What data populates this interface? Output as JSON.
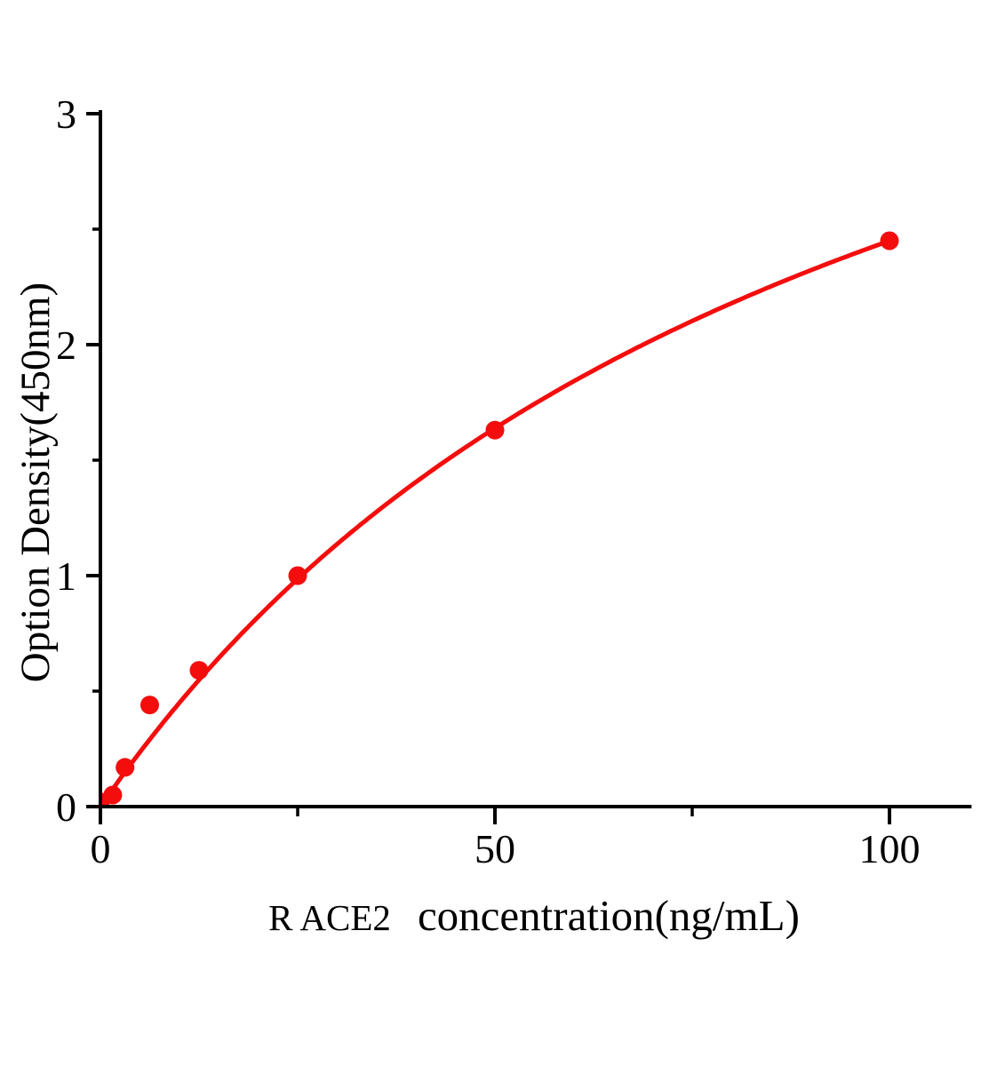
{
  "figure": {
    "background_color": "#ffffff",
    "title": ""
  },
  "chart_data": {
    "type": "scatter",
    "title": "",
    "xlabel": "R ACE2  concentration(ng/mL)",
    "xlabel_prefix": "R ACE2",
    "xlabel_main": "concentration(ng/mL)",
    "ylabel": "Option Density(450nm)",
    "xlim": [
      0,
      110.4
    ],
    "ylim": [
      0,
      3
    ],
    "x_major_ticks": [
      0,
      50,
      100
    ],
    "x_minor_ticks": [
      25,
      75
    ],
    "y_major_ticks": [
      0,
      1,
      2,
      3
    ],
    "y_minor_ticks": [
      0.5,
      1.5,
      2.5
    ],
    "grid": false,
    "legend": null,
    "points": [
      {
        "x": 0,
        "y": 0.02
      },
      {
        "x": 1.56,
        "y": 0.05
      },
      {
        "x": 3.12,
        "y": 0.17
      },
      {
        "x": 6.25,
        "y": 0.44
      },
      {
        "x": 12.5,
        "y": 0.59
      },
      {
        "x": 25,
        "y": 1.0
      },
      {
        "x": 50,
        "y": 1.63
      },
      {
        "x": 100,
        "y": 2.45
      }
    ],
    "fit_curve": {
      "model": "michaelis_menten",
      "formula": "y = a*x / (b + x)",
      "a": 4.85,
      "b": 98,
      "x_range": [
        0,
        100
      ]
    },
    "series_color": "#f40d0d",
    "axis_color": "#000000"
  }
}
